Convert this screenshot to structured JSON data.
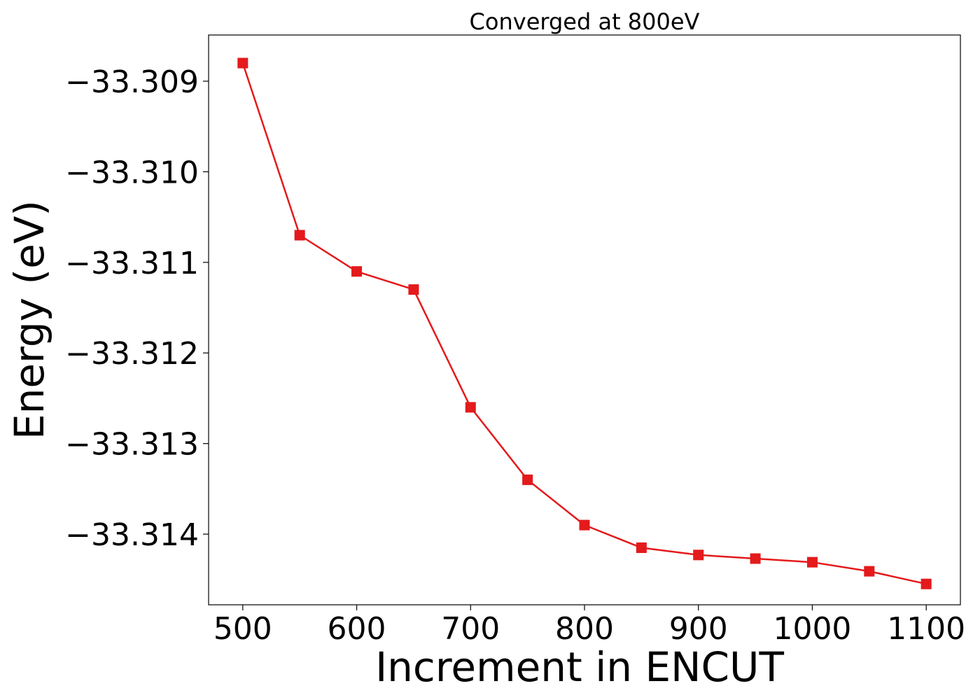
{
  "chart_data": {
    "type": "line",
    "title": "Converged at 800eV",
    "xlabel": "Increment in ENCUT",
    "ylabel": "Energy (eV)",
    "x": [
      500,
      550,
      600,
      650,
      700,
      750,
      800,
      850,
      900,
      950,
      1000,
      1050,
      1100
    ],
    "series": [
      {
        "values": [
          -33.3088,
          -33.3107,
          -33.3111,
          -33.3113,
          -33.3126,
          -33.3134,
          -33.3139,
          -33.31415,
          -33.31423,
          -33.31427,
          -33.31431,
          -33.31441,
          -33.31455
        ]
      }
    ],
    "xlim": [
      470,
      1130
    ],
    "ylim": [
      -33.31478,
      -33.30849
    ],
    "xticks": [
      500,
      600,
      700,
      800,
      900,
      1000,
      1100
    ],
    "xtick_labels": [
      "500",
      "600",
      "700",
      "800",
      "900",
      "1000",
      "1100"
    ],
    "yticks": [
      -33.309,
      -33.31,
      -33.311,
      -33.312,
      -33.313,
      -33.314
    ],
    "ytick_labels": [
      "−33.309",
      "−33.310",
      "−33.311",
      "−33.312",
      "−33.313",
      "−33.314"
    ],
    "line_color": "#e41a1c",
    "marker": "square",
    "grid": false,
    "legend": false
  }
}
